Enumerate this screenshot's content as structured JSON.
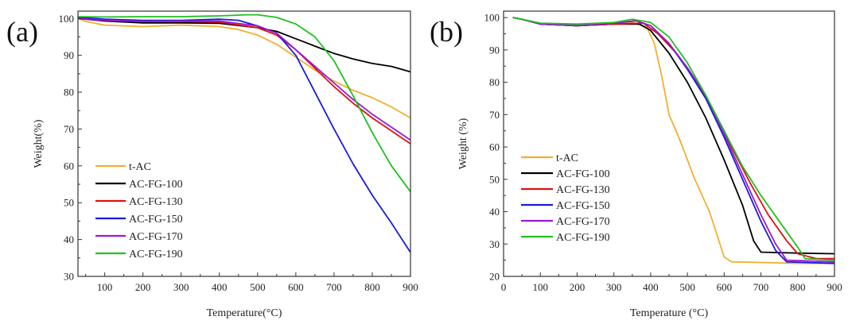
{
  "chart_data": [
    {
      "type": "line",
      "panel_label": "(a)",
      "xlabel": "Temperature(°C)",
      "ylabel": "Weight(%)",
      "xlim": [
        30,
        900
      ],
      "ylim": [
        30,
        102
      ],
      "xticks": [
        100,
        200,
        300,
        400,
        500,
        600,
        700,
        800,
        900
      ],
      "yticks": [
        30,
        40,
        50,
        60,
        70,
        80,
        90,
        100
      ],
      "legend_position": "lower-left",
      "series": [
        {
          "name": "t-AC",
          "color": "#f0b030",
          "points": [
            [
              30,
              100
            ],
            [
              50,
              99.2
            ],
            [
              100,
              98.2
            ],
            [
              200,
              97.8
            ],
            [
              300,
              98.2
            ],
            [
              400,
              97.8
            ],
            [
              450,
              97
            ],
            [
              500,
              95.5
            ],
            [
              550,
              93
            ],
            [
              600,
              89.5
            ],
            [
              650,
              86
            ],
            [
              700,
              83
            ],
            [
              750,
              80.5
            ],
            [
              800,
              78.5
            ],
            [
              850,
              76
            ],
            [
              900,
              73
            ]
          ]
        },
        {
          "name": "AC-FG-100",
          "color": "#000000",
          "points": [
            [
              30,
              100
            ],
            [
              100,
              99.3
            ],
            [
              200,
              98.8
            ],
            [
              300,
              98.8
            ],
            [
              400,
              98.7
            ],
            [
              500,
              97.5
            ],
            [
              550,
              96.5
            ],
            [
              600,
              94.5
            ],
            [
              650,
              92.5
            ],
            [
              700,
              90.5
            ],
            [
              750,
              89
            ],
            [
              800,
              87.8
            ],
            [
              850,
              87
            ],
            [
              900,
              85.5
            ]
          ]
        },
        {
          "name": "AC-FG-130",
          "color": "#e01010",
          "points": [
            [
              30,
              100
            ],
            [
              100,
              99.5
            ],
            [
              200,
              99.2
            ],
            [
              300,
              99.2
            ],
            [
              400,
              99
            ],
            [
              500,
              97.5
            ],
            [
              550,
              95.5
            ],
            [
              600,
              91.5
            ],
            [
              650,
              86.5
            ],
            [
              700,
              81.5
            ],
            [
              750,
              77
            ],
            [
              800,
              73
            ],
            [
              850,
              69.5
            ],
            [
              900,
              66
            ]
          ]
        },
        {
          "name": "AC-FG-150",
          "color": "#1a1ae0",
          "points": [
            [
              30,
              100.3
            ],
            [
              100,
              99.8
            ],
            [
              200,
              99.5
            ],
            [
              300,
              99.5
            ],
            [
              400,
              99.8
            ],
            [
              450,
              99.5
            ],
            [
              500,
              98
            ],
            [
              550,
              96
            ],
            [
              600,
              90
            ],
            [
              650,
              80
            ],
            [
              700,
              70
            ],
            [
              750,
              60.5
            ],
            [
              800,
              52
            ],
            [
              850,
              44.5
            ],
            [
              900,
              36.5
            ]
          ]
        },
        {
          "name": "AC-FG-170",
          "color": "#9a1ad0",
          "points": [
            [
              30,
              100
            ],
            [
              100,
              99.5
            ],
            [
              200,
              99.2
            ],
            [
              300,
              99.3
            ],
            [
              400,
              99.3
            ],
            [
              500,
              98
            ],
            [
              550,
              96
            ],
            [
              600,
              91.5
            ],
            [
              650,
              87
            ],
            [
              700,
              82.5
            ],
            [
              750,
              78
            ],
            [
              800,
              74
            ],
            [
              850,
              70.5
            ],
            [
              900,
              67
            ]
          ]
        },
        {
          "name": "AC-FG-190",
          "color": "#20c020",
          "points": [
            [
              30,
              100.5
            ],
            [
              100,
              100.4
            ],
            [
              200,
              100.5
            ],
            [
              300,
              100.5
            ],
            [
              400,
              100.7
            ],
            [
              470,
              101
            ],
            [
              500,
              101
            ],
            [
              550,
              100.3
            ],
            [
              600,
              98.5
            ],
            [
              650,
              95
            ],
            [
              700,
              88.5
            ],
            [
              750,
              79
            ],
            [
              800,
              69
            ],
            [
              850,
              60
            ],
            [
              900,
              53
            ]
          ]
        }
      ]
    },
    {
      "type": "line",
      "panel_label": "(b)",
      "xlabel": "Temperature (°C)",
      "ylabel": "Weight (%)",
      "xlim": [
        0,
        900
      ],
      "ylim": [
        20,
        102
      ],
      "xticks": [
        0,
        100,
        200,
        300,
        400,
        500,
        600,
        700,
        800,
        900
      ],
      "yticks": [
        20,
        30,
        40,
        50,
        60,
        70,
        80,
        90,
        100
      ],
      "legend_position": "lower-left",
      "series": [
        {
          "name": "t-AC",
          "color": "#f0b030",
          "points": [
            [
              25,
              100
            ],
            [
              50,
              99.5
            ],
            [
              100,
              98
            ],
            [
              200,
              97.5
            ],
            [
              300,
              98
            ],
            [
              350,
              98.5
            ],
            [
              390,
              97
            ],
            [
              410,
              92
            ],
            [
              430,
              82
            ],
            [
              450,
              70
            ],
            [
              480,
              62
            ],
            [
              520,
              50
            ],
            [
              560,
              40
            ],
            [
              580,
              33
            ],
            [
              600,
              26
            ],
            [
              620,
              24.5
            ],
            [
              700,
              24.3
            ],
            [
              800,
              24
            ],
            [
              900,
              24
            ]
          ]
        },
        {
          "name": "AC-FG-100",
          "color": "#000000",
          "points": [
            [
              25,
              100
            ],
            [
              50,
              99.5
            ],
            [
              100,
              98
            ],
            [
              200,
              97.5
            ],
            [
              300,
              98
            ],
            [
              370,
              98
            ],
            [
              400,
              96
            ],
            [
              450,
              89
            ],
            [
              500,
              80
            ],
            [
              550,
              69
            ],
            [
              600,
              56
            ],
            [
              650,
              42
            ],
            [
              680,
              31
            ],
            [
              700,
              27.5
            ],
            [
              800,
              27.2
            ],
            [
              900,
              27
            ]
          ]
        },
        {
          "name": "AC-FG-130",
          "color": "#e01010",
          "points": [
            [
              25,
              100
            ],
            [
              50,
              99.5
            ],
            [
              100,
              98
            ],
            [
              200,
              97.5
            ],
            [
              300,
              98
            ],
            [
              380,
              98.3
            ],
            [
              420,
              95
            ],
            [
              470,
              89
            ],
            [
              520,
              81
            ],
            [
              570,
              71
            ],
            [
              620,
              60
            ],
            [
              670,
              49
            ],
            [
              720,
              39
            ],
            [
              770,
              31
            ],
            [
              800,
              27
            ],
            [
              850,
              25.5
            ],
            [
              900,
              25.5
            ]
          ]
        },
        {
          "name": "AC-FG-150",
          "color": "#1a1ae0",
          "points": [
            [
              25,
              100
            ],
            [
              50,
              99.5
            ],
            [
              100,
              98
            ],
            [
              200,
              97.5
            ],
            [
              300,
              98.3
            ],
            [
              360,
              99
            ],
            [
              400,
              97.5
            ],
            [
              450,
              92
            ],
            [
              500,
              84
            ],
            [
              550,
              75
            ],
            [
              600,
              63
            ],
            [
              650,
              50
            ],
            [
              700,
              37
            ],
            [
              740,
              28
            ],
            [
              770,
              24.5
            ],
            [
              900,
              24
            ]
          ]
        },
        {
          "name": "AC-FG-170",
          "color": "#9a1ad0",
          "points": [
            [
              25,
              100
            ],
            [
              50,
              99.5
            ],
            [
              100,
              98
            ],
            [
              200,
              97.5
            ],
            [
              300,
              98.3
            ],
            [
              360,
              99
            ],
            [
              400,
              97.5
            ],
            [
              450,
              92
            ],
            [
              500,
              84.5
            ],
            [
              550,
              76
            ],
            [
              600,
              64
            ],
            [
              650,
              51.5
            ],
            [
              700,
              39
            ],
            [
              740,
              30
            ],
            [
              770,
              25
            ],
            [
              900,
              24.5
            ]
          ]
        },
        {
          "name": "AC-FG-190",
          "color": "#20c020",
          "points": [
            [
              25,
              100
            ],
            [
              50,
              99.5
            ],
            [
              100,
              98.3
            ],
            [
              200,
              98
            ],
            [
              300,
              98.5
            ],
            [
              350,
              99.5
            ],
            [
              400,
              98.5
            ],
            [
              450,
              94
            ],
            [
              500,
              86
            ],
            [
              550,
              76
            ],
            [
              600,
              65
            ],
            [
              650,
              54
            ],
            [
              700,
              45
            ],
            [
              750,
              37
            ],
            [
              800,
              29
            ],
            [
              820,
              25.5
            ],
            [
              900,
              25
            ]
          ]
        }
      ]
    }
  ]
}
